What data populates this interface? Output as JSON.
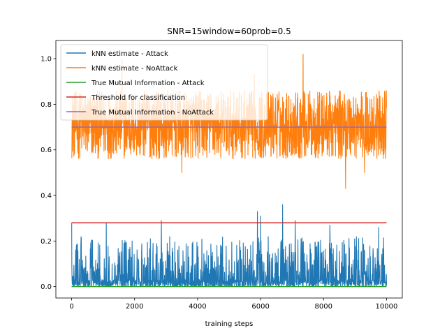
{
  "chart_data": {
    "type": "line",
    "title": "SNR=15window=60prob=0.5",
    "xlabel": "training steps",
    "ylabel": "",
    "xlim": [
      -500,
      10500
    ],
    "ylim": [
      -0.05,
      1.08
    ],
    "xticks": [
      0,
      2000,
      4000,
      6000,
      8000,
      10000
    ],
    "xtick_labels": [
      "0",
      "2000",
      "4000",
      "6000",
      "8000",
      "10000"
    ],
    "yticks": [
      0.0,
      0.2,
      0.4,
      0.6,
      0.8,
      1.0
    ],
    "ytick_labels": [
      "0.0",
      "0.2",
      "0.4",
      "0.6",
      "0.8",
      "1.0"
    ],
    "grid": false,
    "legend_position": "top-left",
    "series": [
      {
        "name": "kNN estimate - Attack",
        "color": "#1f77b4",
        "kind": "noisy",
        "x_range": [
          0,
          10000
        ],
        "baseline": 0.03,
        "typical_range": [
          0.0,
          0.22
        ],
        "peaks": [
          [
            2,
            0.28
          ],
          [
            1100,
            0.28
          ],
          [
            2850,
            0.29
          ],
          [
            5900,
            0.33
          ],
          [
            6000,
            0.31
          ],
          [
            6700,
            0.36
          ],
          [
            7100,
            0.29
          ],
          [
            8200,
            0.27
          ],
          [
            9750,
            0.26
          ]
        ]
      },
      {
        "name": "kNN estimate - NoAttack",
        "color": "#ff7f0e",
        "kind": "noisy",
        "x_range": [
          0,
          10000
        ],
        "baseline": 0.7,
        "typical_range": [
          0.56,
          0.86
        ],
        "peaks": [
          [
            1600,
            1.0
          ],
          [
            7350,
            1.02
          ],
          [
            5800,
            0.93
          ],
          [
            8700,
            0.43
          ],
          [
            3500,
            0.5
          ],
          [
            9300,
            0.5
          ]
        ]
      },
      {
        "name": "True Mutual Information - Attack",
        "color": "#2ca02c",
        "kind": "constant",
        "x": [
          0,
          10000
        ],
        "values": [
          0.0,
          0.0
        ]
      },
      {
        "name": "Threshold for classification",
        "color": "#d62728",
        "kind": "constant",
        "x": [
          0,
          10000
        ],
        "values": [
          0.28,
          0.28
        ]
      },
      {
        "name": "True Mutual Information - NoAttack",
        "color": "#9467bd",
        "kind": "constant",
        "x": [
          0,
          10000
        ],
        "values": [
          0.7,
          0.7
        ]
      }
    ]
  }
}
